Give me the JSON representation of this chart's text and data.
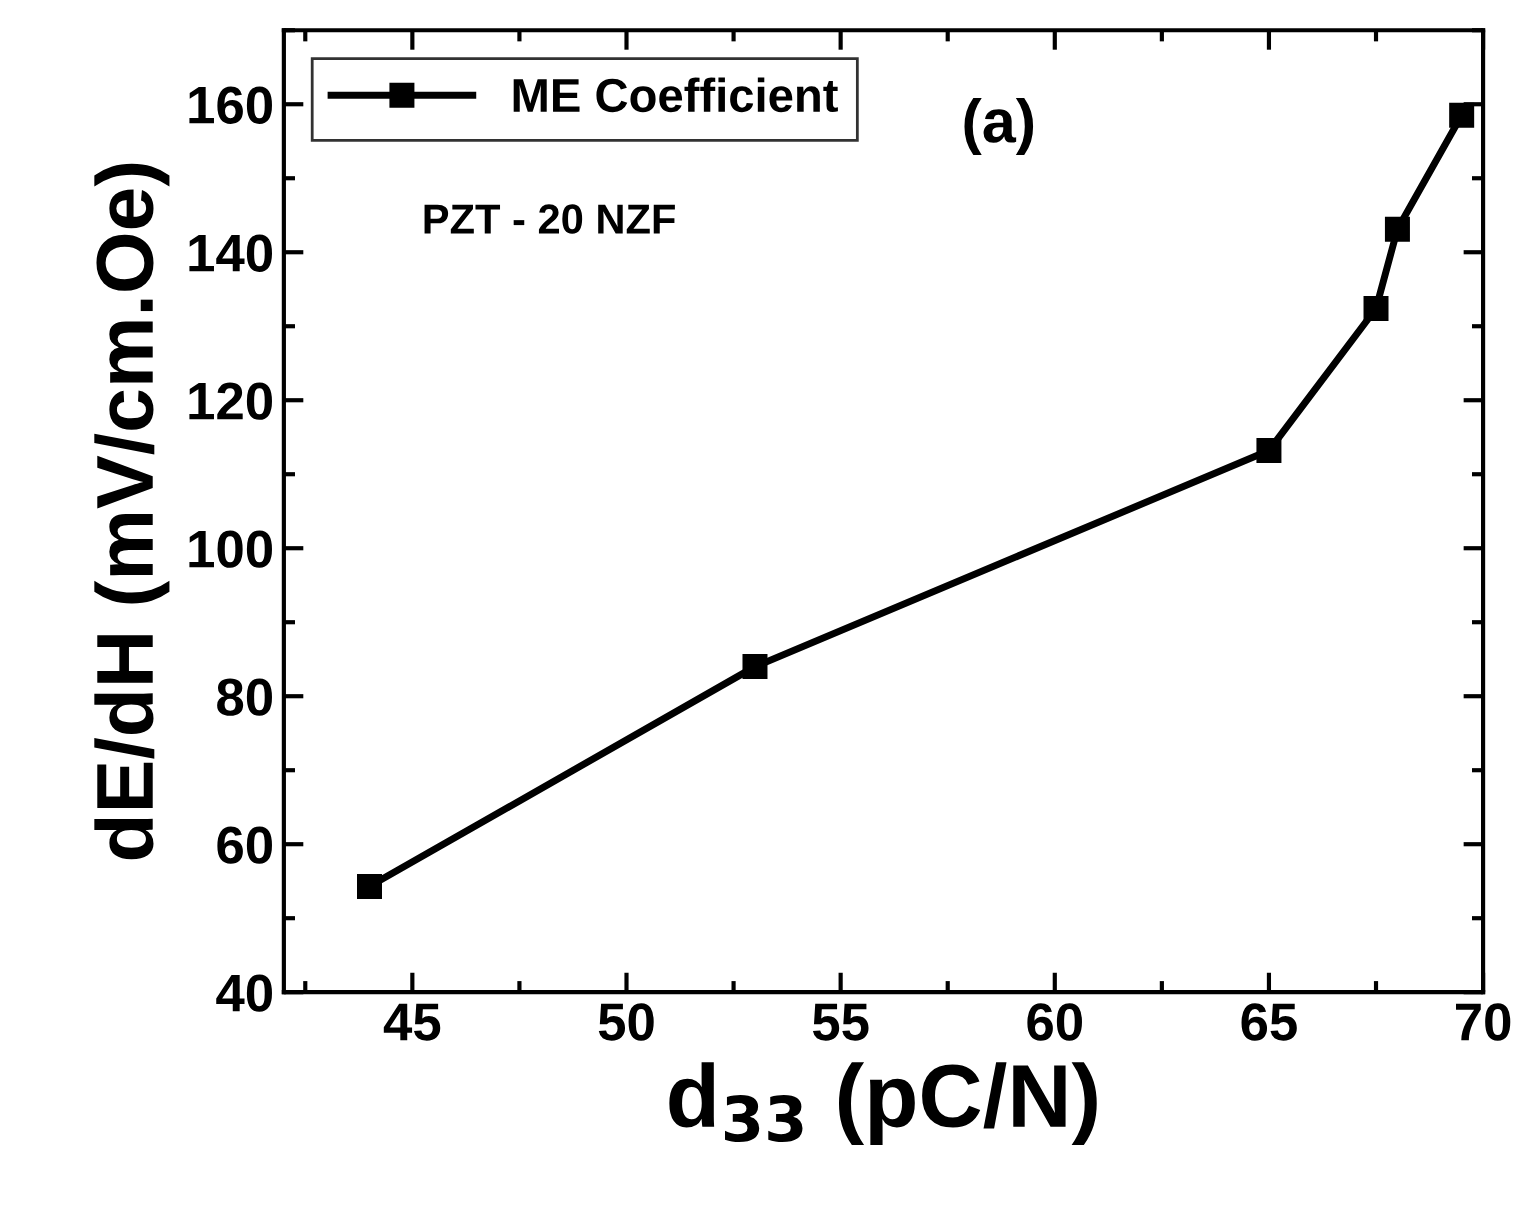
{
  "chart_data": {
    "type": "line",
    "xlabel": "d$_{33}$ (pC/N)",
    "ylabel": "dE/dH (mV/cm.Oe)",
    "annotations": [
      "(a)",
      "PZT - 20 NZF"
    ],
    "x": [
      44,
      53,
      65,
      67.5,
      68,
      69.5
    ],
    "series": [
      {
        "name": "ME Coefficient",
        "color": "#000000",
        "values": [
          54.3,
          84.0,
          113.2,
          132.4,
          143.1,
          158.5
        ]
      }
    ],
    "xlim": [
      42,
      70
    ],
    "xticks": [
      45,
      50,
      55,
      60,
      65,
      70
    ],
    "ylim": [
      40,
      170
    ],
    "yticks": [
      40,
      60,
      80,
      100,
      120,
      140,
      160
    ],
    "marker": "square",
    "line_style": "solid",
    "legend": "top left",
    "grid": false
  }
}
